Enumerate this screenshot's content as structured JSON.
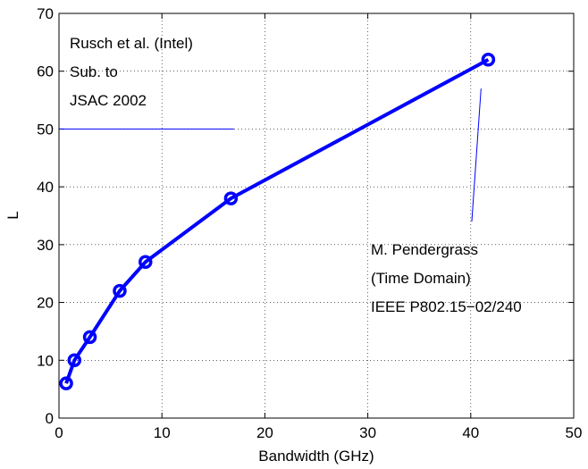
{
  "chart_data": {
    "type": "line",
    "xlabel": "Bandwidth (GHz)",
    "ylabel": "L",
    "xlim": [
      0,
      50
    ],
    "ylim": [
      0,
      70
    ],
    "xticks": [
      "0",
      "10",
      "20",
      "30",
      "40",
      "50"
    ],
    "yticks": [
      "0",
      "10",
      "20",
      "30",
      "40",
      "50",
      "60",
      "70"
    ],
    "grid": true,
    "series": [
      {
        "x": [
          0.7,
          1.5,
          3.0,
          5.9,
          8.4,
          16.7,
          41.7
        ],
        "y": [
          6,
          10,
          14,
          22,
          27,
          38,
          62
        ],
        "color": "#0000ff",
        "marker": "circle"
      }
    ],
    "annotations": [
      {
        "lines": [
          "Rusch et al. (Intel)",
          "Sub. to",
          "JSAC 2002"
        ],
        "pointer": {
          "from": [
            0,
            50
          ],
          "to": [
            17,
            50
          ]
        }
      },
      {
        "lines": [
          "M. Pendergrass",
          "(Time Domain)",
          "IEEE P802.15−02/240"
        ],
        "pointer": {
          "from": [
            40.1,
            34
          ],
          "to": [
            41,
            57
          ]
        }
      }
    ]
  }
}
